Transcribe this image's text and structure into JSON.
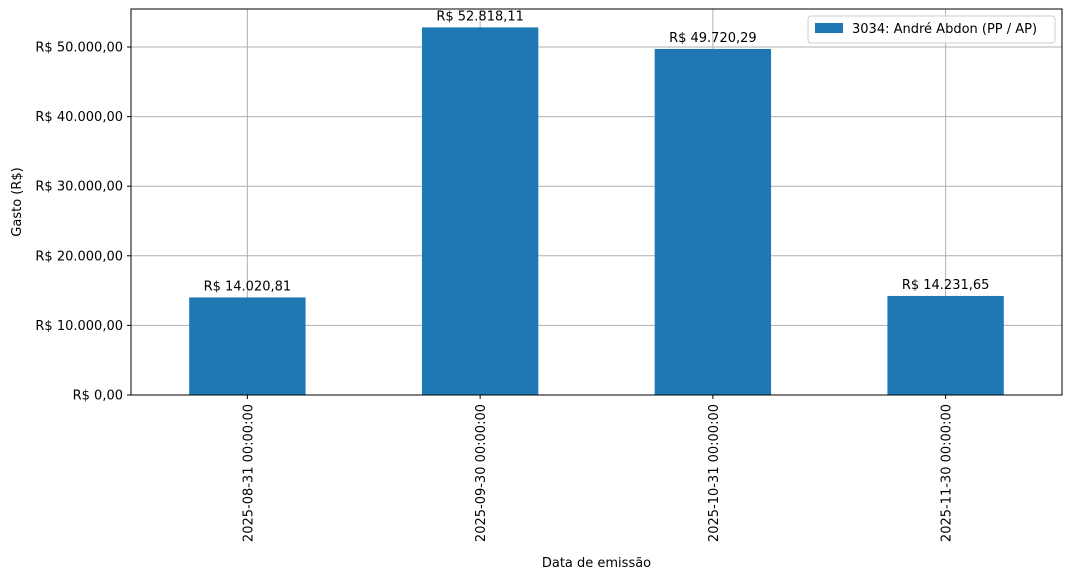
{
  "chart_data": {
    "type": "bar",
    "title": "",
    "xlabel": "Data de emissão",
    "ylabel": "Gasto (R$)",
    "categories": [
      "2025-08-31 00:00:00",
      "2025-09-30 00:00:00",
      "2025-10-31 00:00:00",
      "2025-11-30 00:00:00"
    ],
    "series": [
      {
        "name": "3034: André Abdon (PP / AP)",
        "values": [
          14020.81,
          52818.11,
          49720.29,
          14231.65
        ],
        "value_labels": [
          "R$ 14.020,81",
          "R$ 52.818,11",
          "R$ 49.720,29",
          "R$ 14.231,65"
        ],
        "color": "#1f77b4"
      }
    ],
    "ylim": [
      0,
      55460
    ],
    "yticks": [
      0,
      10000,
      20000,
      30000,
      40000,
      50000
    ],
    "ytick_labels": [
      "R$ 0,00",
      "R$ 10.000,00",
      "R$ 20.000,00",
      "R$ 30.000,00",
      "R$ 40.000,00",
      "R$ 50.000,00"
    ],
    "grid": true,
    "legend_position": "top-right"
  }
}
